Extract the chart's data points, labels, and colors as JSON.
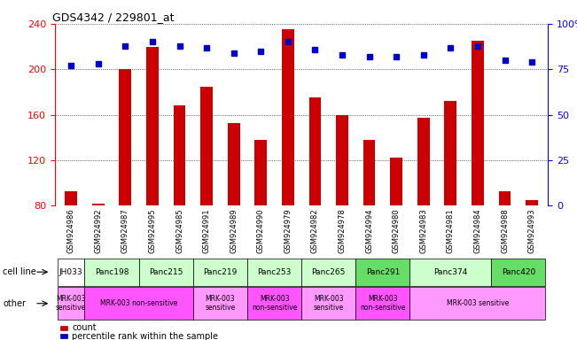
{
  "title": "GDS4342 / 229801_at",
  "samples": [
    "GSM924986",
    "GSM924992",
    "GSM924987",
    "GSM924995",
    "GSM924985",
    "GSM924991",
    "GSM924989",
    "GSM924990",
    "GSM924979",
    "GSM924982",
    "GSM924978",
    "GSM924994",
    "GSM924980",
    "GSM924983",
    "GSM924981",
    "GSM924984",
    "GSM924988",
    "GSM924993"
  ],
  "counts": [
    93,
    82,
    200,
    220,
    168,
    185,
    153,
    138,
    235,
    175,
    160,
    138,
    122,
    157,
    172,
    225,
    93,
    85
  ],
  "percentiles": [
    77,
    78,
    88,
    90,
    88,
    87,
    84,
    85,
    90,
    86,
    83,
    82,
    82,
    83,
    87,
    88,
    80,
    79
  ],
  "ylim_left": [
    80,
    240
  ],
  "ylim_right": [
    0,
    100
  ],
  "yticks_left": [
    80,
    120,
    160,
    200,
    240
  ],
  "yticks_right": [
    0,
    25,
    50,
    75,
    100
  ],
  "bar_color": "#cc0000",
  "dot_color": "#0000cc",
  "cell_lines": [
    {
      "label": "JH033",
      "start": 0,
      "end": 1,
      "color": "#ffffff"
    },
    {
      "label": "Panc198",
      "start": 1,
      "end": 3,
      "color": "#ccffcc"
    },
    {
      "label": "Panc215",
      "start": 3,
      "end": 5,
      "color": "#ccffcc"
    },
    {
      "label": "Panc219",
      "start": 5,
      "end": 7,
      "color": "#ccffcc"
    },
    {
      "label": "Panc253",
      "start": 7,
      "end": 9,
      "color": "#ccffcc"
    },
    {
      "label": "Panc265",
      "start": 9,
      "end": 11,
      "color": "#ccffcc"
    },
    {
      "label": "Panc291",
      "start": 11,
      "end": 13,
      "color": "#66dd66"
    },
    {
      "label": "Panc374",
      "start": 13,
      "end": 16,
      "color": "#ccffcc"
    },
    {
      "label": "Panc420",
      "start": 16,
      "end": 18,
      "color": "#66dd66"
    }
  ],
  "other_groups": [
    {
      "label": "MRK-003\nsensitive",
      "start": 0,
      "end": 1,
      "color": "#ff99ff"
    },
    {
      "label": "MRK-003 non-sensitive",
      "start": 1,
      "end": 5,
      "color": "#ff55ff"
    },
    {
      "label": "MRK-003\nsensitive",
      "start": 5,
      "end": 7,
      "color": "#ff99ff"
    },
    {
      "label": "MRK-003\nnon-sensitive",
      "start": 7,
      "end": 9,
      "color": "#ff55ff"
    },
    {
      "label": "MRK-003\nsensitive",
      "start": 9,
      "end": 11,
      "color": "#ff99ff"
    },
    {
      "label": "MRK-003\nnon-sensitive",
      "start": 11,
      "end": 13,
      "color": "#ff55ff"
    },
    {
      "label": "MRK-003 sensitive",
      "start": 13,
      "end": 18,
      "color": "#ff99ff"
    }
  ],
  "xlabel_label": "cell line",
  "other_label": "other",
  "legend_count": "count",
  "legend_pct": "percentile rank within the sample",
  "background_color": "#ffffff"
}
